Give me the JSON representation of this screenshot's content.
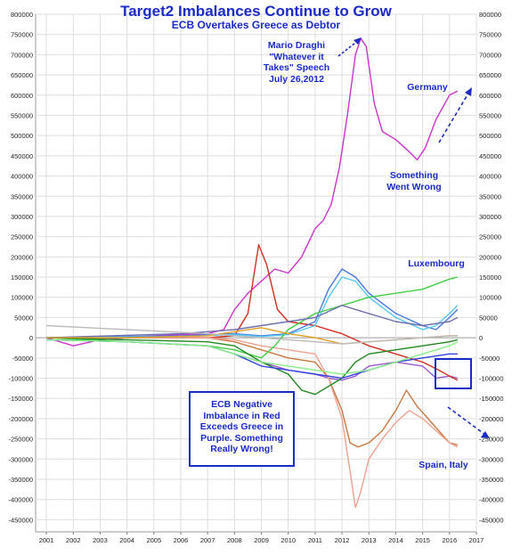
{
  "chart_data": {
    "type": "line",
    "title": "Target2 Imbalances Continue to Grow",
    "subtitle": "ECB Overtakes Greece as Debtor",
    "ylim": [
      -480000,
      800000
    ],
    "xlim": [
      2000.6,
      2017
    ],
    "yticks": [
      800000,
      750000,
      700000,
      650000,
      600000,
      550000,
      500000,
      450000,
      400000,
      350000,
      300000,
      250000,
      200000,
      150000,
      100000,
      50000,
      0,
      -50000,
      -100000,
      -150000,
      -200000,
      -250000,
      -300000,
      -350000,
      -400000,
      -450000
    ],
    "ytick_labels": [
      "800000",
      "750000",
      "700000",
      "650000",
      "600000",
      "550000",
      "500000",
      "450000",
      "400000",
      "350000",
      "300000",
      "250000",
      "200000",
      "150000",
      "100000",
      "50000",
      "0",
      "-50000",
      "-100000",
      "-150000",
      "-200000",
      "-250000",
      "-300000",
      "-350000",
      "-400000",
      "-450000"
    ],
    "xticks": [
      2001,
      2002,
      2003,
      2004,
      2005,
      2006,
      2007,
      2008,
      2009,
      2010,
      2011,
      2012,
      2013,
      2014,
      2015,
      2016,
      2017
    ],
    "xtick_labels": [
      "2001",
      "2002",
      "2003",
      "2004",
      "2005",
      "2006",
      "2007",
      "2008",
      "2009",
      "2010",
      "2011",
      "2012",
      "2013",
      "2014",
      "2015",
      "2016",
      "2017"
    ],
    "grid": true,
    "annotations": {
      "draghi": "Mario Draghi\n\"Whatever it\nTakes\" Speech\nJuly 26,2012",
      "germany": "Germany",
      "something_wrong": "Something\nWent Wrong",
      "luxembourg": "Luxembourg",
      "ecb_note": "ECB Negative\nImbalance in Red\nExceeds Greece in\nPurple. Something\nReally Wrong!",
      "spain_italy": "Spain, Italy"
    },
    "series": [
      {
        "color": "#cc33cc",
        "x": [
          2001,
          2002,
          2003,
          2004,
          2005,
          2006,
          2007,
          2007.6,
          2008,
          2008.5,
          2009,
          2009.5,
          2010,
          2010.5,
          2011,
          2011.3,
          2011.6,
          2011.9,
          2012.2,
          2012.5,
          2012.7,
          2012.9,
          2013.2,
          2013.5,
          2014,
          2014.5,
          2014.8,
          2015.1,
          2015.5,
          2016,
          2016.3
        ],
        "values": [
          0,
          -20000,
          -5000,
          0,
          5000,
          8000,
          10000,
          20000,
          70000,
          110000,
          140000,
          170000,
          160000,
          200000,
          270000,
          290000,
          330000,
          420000,
          550000,
          700000,
          740000,
          720000,
          580000,
          510000,
          490000,
          460000,
          440000,
          470000,
          540000,
          600000,
          610000
        ]
      },
      {
        "color": "#9b59d0",
        "x": [
          2008,
          2009,
          2010,
          2011,
          2011.5,
          2012,
          2012.5,
          2013,
          2014,
          2015,
          2015.5,
          2016,
          2016.3
        ],
        "values": [
          -40000,
          -60000,
          -80000,
          -90000,
          -100000,
          -105000,
          -95000,
          -70000,
          -60000,
          -70000,
          -100000,
          -95000,
          -100000
        ]
      },
      {
        "color": "#d03020",
        "x": [
          2001,
          2004,
          2007,
          2008,
          2008.5,
          2008.9,
          2009.2,
          2009.6,
          2010,
          2011,
          2012,
          2013,
          2014,
          2015,
          2015.6,
          2016,
          2016.3
        ],
        "values": [
          0,
          0,
          0,
          5000,
          60000,
          230000,
          180000,
          70000,
          40000,
          30000,
          10000,
          -20000,
          -40000,
          -60000,
          -80000,
          -95000,
          -105000
        ]
      },
      {
        "color": "#c87840",
        "x": [
          2001,
          2004,
          2007,
          2008,
          2009,
          2010,
          2011,
          2011.5,
          2012,
          2012.3,
          2012.6,
          2013,
          2013.5,
          2014,
          2014.4,
          2014.8,
          2015.2,
          2015.6,
          2016,
          2016.3
        ],
        "values": [
          0,
          0,
          0,
          -10000,
          -30000,
          -50000,
          -60000,
          -100000,
          -180000,
          -260000,
          -270000,
          -260000,
          -230000,
          -180000,
          -130000,
          -170000,
          -200000,
          -230000,
          -260000,
          -265000
        ]
      },
      {
        "color": "#f0a090",
        "x": [
          2001,
          2004,
          2007,
          2008,
          2009,
          2010,
          2011,
          2011.5,
          2012,
          2012.3,
          2012.5,
          2012.7,
          2013,
          2013.5,
          2014,
          2014.5,
          2015,
          2015.5,
          2016,
          2016.3
        ],
        "values": [
          0,
          0,
          0,
          -5000,
          -20000,
          -30000,
          -40000,
          -100000,
          -200000,
          -330000,
          -420000,
          -380000,
          -300000,
          -250000,
          -210000,
          -180000,
          -200000,
          -230000,
          -260000,
          -270000
        ]
      },
      {
        "color": "#4a78e0",
        "x": [
          2001,
          2006,
          2008,
          2009,
          2010,
          2011,
          2011.5,
          2012,
          2012.5,
          2013,
          2014,
          2015,
          2015.5,
          2016,
          2016.3
        ],
        "values": [
          0,
          5000,
          10000,
          5000,
          10000,
          40000,
          120000,
          170000,
          150000,
          110000,
          60000,
          30000,
          20000,
          50000,
          70000
        ]
      },
      {
        "color": "#55c8f0",
        "x": [
          2001,
          2006,
          2008,
          2009,
          2010,
          2011,
          2011.5,
          2012,
          2012.5,
          2013,
          2014,
          2015,
          2015.5,
          2016,
          2016.3
        ],
        "values": [
          0,
          3000,
          8000,
          3000,
          8000,
          30000,
          100000,
          150000,
          140000,
          100000,
          50000,
          20000,
          30000,
          60000,
          80000
        ]
      },
      {
        "color": "#44cc44",
        "x": [
          2001,
          2004,
          2007,
          2008,
          2009,
          2009.5,
          2010,
          2011,
          2012,
          2013,
          2014,
          2015,
          2016,
          2016.3
        ],
        "values": [
          0,
          -10000,
          -20000,
          -30000,
          -50000,
          -20000,
          20000,
          60000,
          80000,
          100000,
          110000,
          120000,
          145000,
          150000
        ]
      },
      {
        "color": "#7070b0",
        "x": [
          2001,
          2006,
          2008,
          2009,
          2010,
          2011,
          2012,
          2013,
          2014,
          2015,
          2016,
          2016.3
        ],
        "values": [
          0,
          10000,
          20000,
          30000,
          40000,
          50000,
          80000,
          60000,
          40000,
          30000,
          40000,
          50000
        ]
      },
      {
        "color": "#228822",
        "x": [
          2001,
          2004,
          2007,
          2008,
          2009,
          2010,
          2010.5,
          2011,
          2011.5,
          2012,
          2012.5,
          2013,
          2014,
          2015,
          2016,
          2016.3
        ],
        "values": [
          0,
          -5000,
          -10000,
          -20000,
          -60000,
          -90000,
          -130000,
          -140000,
          -120000,
          -100000,
          -60000,
          -40000,
          -30000,
          -20000,
          -10000,
          -5000
        ]
      },
      {
        "color": "#3344dd",
        "x": [
          2001,
          2004,
          2007,
          2008,
          2009,
          2010,
          2011,
          2012,
          2013,
          2014,
          2015,
          2016,
          2016.3
        ],
        "values": [
          -5000,
          -10000,
          -20000,
          -40000,
          -70000,
          -80000,
          -90000,
          -100000,
          -80000,
          -60000,
          -50000,
          -40000,
          -40000
        ]
      },
      {
        "color": "#e0a020",
        "x": [
          2001,
          2004,
          2007,
          2008,
          2009,
          2010,
          2011,
          2012,
          2013,
          2014,
          2015,
          2016,
          2016.3
        ],
        "values": [
          0,
          0,
          5000,
          15000,
          25000,
          10000,
          0,
          -15000,
          -10000,
          -5000,
          0,
          5000,
          5000
        ]
      },
      {
        "color": "#88ee88",
        "x": [
          2001,
          2004,
          2007,
          2008,
          2009,
          2010,
          2011,
          2012,
          2013,
          2014,
          2015,
          2016,
          2016.3
        ],
        "values": [
          -5000,
          -10000,
          -20000,
          -40000,
          -60000,
          -70000,
          -80000,
          -90000,
          -80000,
          -60000,
          -40000,
          -20000,
          -10000
        ]
      },
      {
        "color": "#bbbbbb",
        "x": [
          2001,
          2004,
          2007,
          2008,
          2009,
          2010,
          2011,
          2012,
          2013,
          2014,
          2015,
          2016,
          2016.3
        ],
        "values": [
          30000,
          20000,
          10000,
          5000,
          0,
          -5000,
          -10000,
          -15000,
          -10000,
          -5000,
          0,
          5000,
          5000
        ]
      }
    ]
  }
}
